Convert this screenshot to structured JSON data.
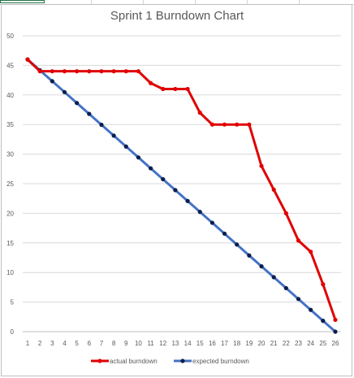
{
  "chart_data": {
    "type": "line",
    "title": "Sprint 1 Burndown Chart",
    "xlabel": "",
    "ylabel": "",
    "x": [
      1,
      2,
      3,
      4,
      5,
      6,
      7,
      8,
      9,
      10,
      11,
      12,
      13,
      14,
      15,
      16,
      17,
      18,
      19,
      20,
      21,
      22,
      23,
      24,
      25,
      26
    ],
    "ylim": [
      0,
      50
    ],
    "yticks": [
      0,
      5,
      10,
      15,
      20,
      25,
      30,
      35,
      40,
      45,
      50
    ],
    "grid": true,
    "legend_position": "bottom",
    "series": [
      {
        "name": "actual burndown",
        "color": "#e00000",
        "values": [
          46,
          44,
          44,
          44,
          44,
          44,
          44,
          44,
          44,
          44,
          42,
          41,
          41,
          41,
          37,
          35,
          35,
          35,
          35,
          28,
          24,
          20,
          15.4,
          13.5,
          8,
          2
        ]
      },
      {
        "name": "expected burndown",
        "color": "#4472c4",
        "marker_color": "#0b1f4a",
        "values": [
          46,
          44.16,
          42.32,
          40.48,
          38.64,
          36.8,
          34.96,
          33.12,
          31.28,
          29.44,
          27.6,
          25.76,
          23.92,
          22.08,
          20.24,
          18.4,
          16.56,
          14.72,
          12.88,
          11.04,
          9.2,
          7.36,
          5.52,
          3.68,
          1.84,
          0
        ]
      }
    ]
  }
}
